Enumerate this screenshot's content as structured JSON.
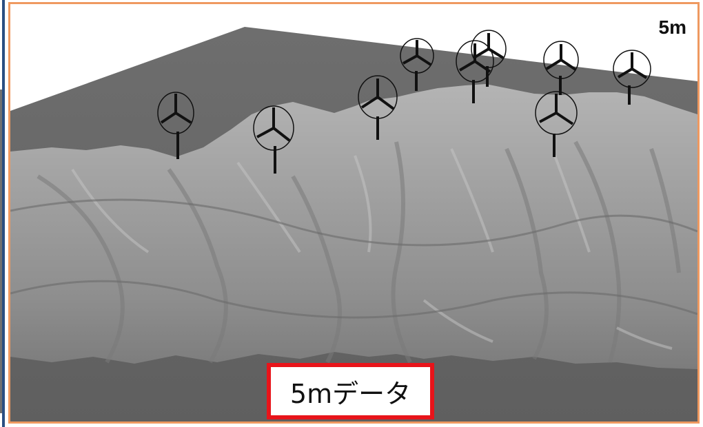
{
  "resolution_label": "5m",
  "caption": "5mデータ",
  "colors": {
    "frame_border": "#ef9960",
    "caption_border": "#e8141a",
    "left_divider": "#2a4f82",
    "plane": "#6b6b6b",
    "terrain": "#9a9a9a"
  },
  "turbine_count": 10
}
